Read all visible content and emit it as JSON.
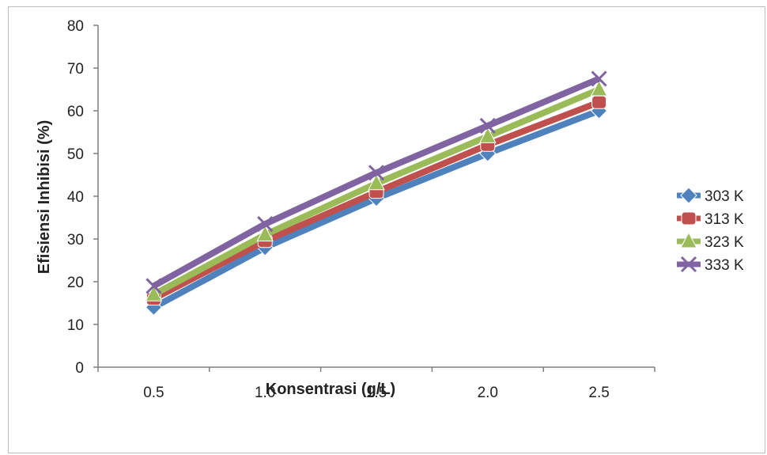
{
  "chart_data": {
    "type": "line",
    "title": "",
    "xlabel": "Konsentrasi (g/L)",
    "ylabel": "Efisiensi Inhibisi (%)",
    "categories": [
      "0.5",
      "1.0",
      "1.5",
      "2.0",
      "2.5"
    ],
    "ylim": [
      0,
      80
    ],
    "yticks": [
      0,
      10,
      20,
      30,
      40,
      50,
      60,
      70,
      80
    ],
    "grid": false,
    "legend_position": "right",
    "series": [
      {
        "name": "303 K",
        "color": "#4f81bd",
        "marker": "diamond",
        "values": [
          14,
          28,
          39.5,
          50,
          60
        ]
      },
      {
        "name": "313 K",
        "color": "#c0504d",
        "marker": "square",
        "values": [
          16,
          29.5,
          41,
          52,
          62
        ]
      },
      {
        "name": "323 K",
        "color": "#9bbb59",
        "marker": "triangle",
        "values": [
          17,
          31,
          43,
          54,
          65
        ]
      },
      {
        "name": "333 K",
        "color": "#8064a2",
        "marker": "x",
        "values": [
          19,
          33.5,
          45.5,
          56.5,
          67.5
        ]
      }
    ]
  }
}
